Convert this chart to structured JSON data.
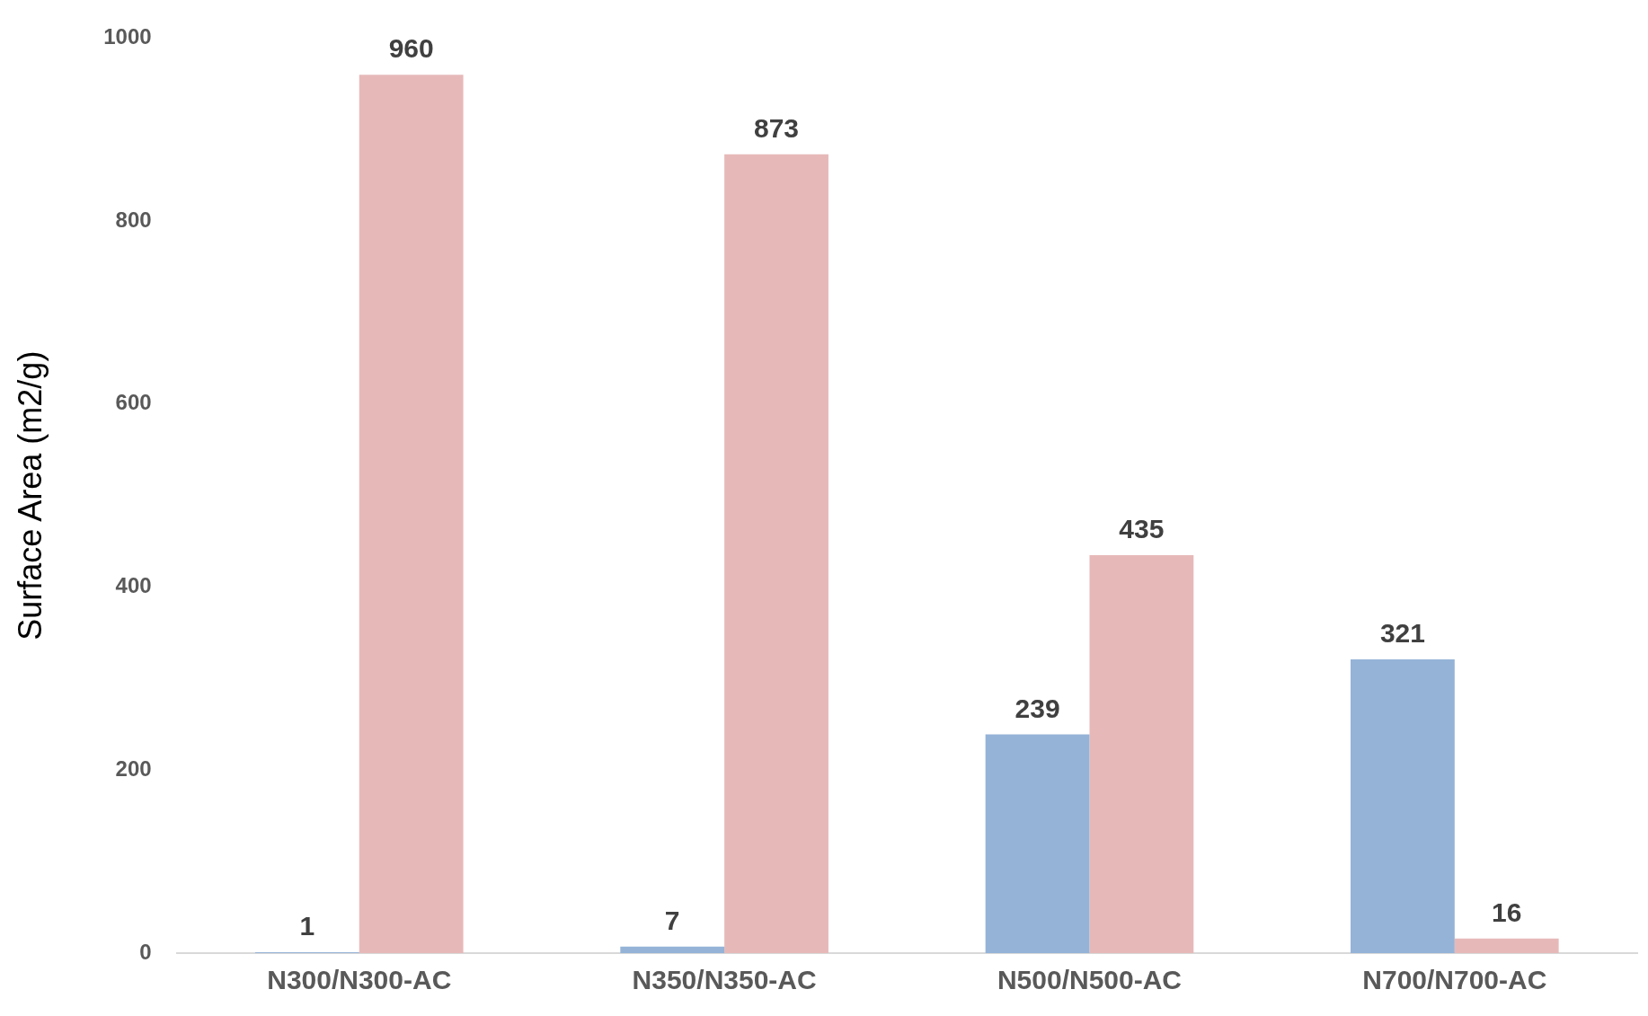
{
  "chart_data": {
    "type": "bar",
    "ylabel": "Surface Area (m2/g)",
    "categories": [
      "N300/N300-AC",
      "N350/N350-AC",
      "N500/N500-AC",
      "N700/N700-AC"
    ],
    "series": [
      {
        "color": "#95b3d7",
        "values": [
          1,
          7,
          239,
          321
        ]
      },
      {
        "color": "#e6b9b8",
        "values": [
          960,
          873,
          435,
          16
        ]
      }
    ],
    "ylim": [
      0,
      1000
    ],
    "yticks": [
      0,
      200,
      400,
      600,
      800,
      1000
    ],
    "grid": false,
    "legend": false,
    "data_labels": true
  }
}
